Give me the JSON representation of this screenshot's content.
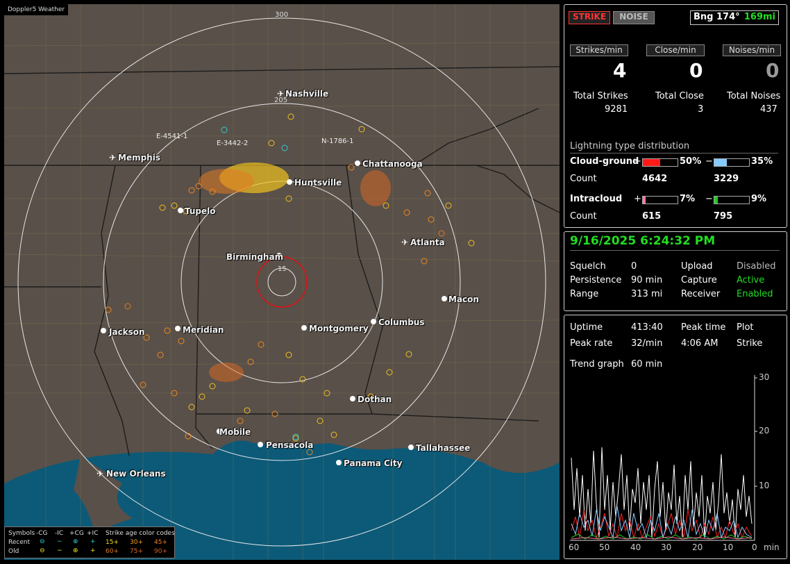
{
  "app_title": "Doppler5 Weather",
  "map": {
    "ring_labels": [
      "300",
      "205",
      "15"
    ],
    "cities": [
      {
        "name": "Nashville",
        "type": "airport"
      },
      {
        "name": "Memphis",
        "type": "airport"
      },
      {
        "name": "Chattanooga",
        "type": "dot"
      },
      {
        "name": "Huntsville",
        "type": "dot"
      },
      {
        "name": "Tupelo",
        "type": "dot"
      },
      {
        "name": "Atlanta",
        "type": "airport"
      },
      {
        "name": "Birmingham",
        "type": "dot"
      },
      {
        "name": "Macon",
        "type": "dot"
      },
      {
        "name": "Jackson",
        "type": "dot"
      },
      {
        "name": "Meridian",
        "type": "dot"
      },
      {
        "name": "Montgomery",
        "type": "dot"
      },
      {
        "name": "Columbus",
        "type": "dot"
      },
      {
        "name": "Dothan",
        "type": "dot"
      },
      {
        "name": "Mobile",
        "type": "dot"
      },
      {
        "name": "Pensacola",
        "type": "dot"
      },
      {
        "name": "Tallahassee",
        "type": "dot"
      },
      {
        "name": "Panama City",
        "type": "dot"
      },
      {
        "name": "New Orleans",
        "type": "airport"
      }
    ],
    "storm_tags": [
      "E-4541-1",
      "E-3442-2",
      "N-1786-1"
    ]
  },
  "legend": {
    "symbols_label": "Symbols",
    "headers": [
      "-CG",
      "-IC",
      "+CG",
      "+IC"
    ],
    "rows": [
      "Recent",
      "Old"
    ],
    "age_label": "Strike age color codes",
    "recent_ages": [
      "15+",
      "30+",
      "45+"
    ],
    "old_ages": [
      "60+",
      "75+",
      "90+"
    ]
  },
  "top": {
    "strike_button": "STRIKE",
    "noise_button": "NOISE",
    "bearing": "Bng 174°",
    "distance": "169mi",
    "rate_buttons": [
      "Strikes/min",
      "Close/min",
      "Noises/min"
    ],
    "rates": [
      "4",
      "0",
      "0"
    ],
    "total_labels": [
      "Total Strikes",
      "Total Close",
      "Total Noises"
    ],
    "totals": [
      "9281",
      "3",
      "437"
    ],
    "dist_title": "Lightning type distribution",
    "cg_label": "Cloud-ground",
    "ic_label": "Intracloud",
    "count_label": "Count",
    "cg_pos_pct": "50%",
    "cg_neg_pct": "35%",
    "cg_pos_count": "4642",
    "cg_neg_count": "3229",
    "ic_pos_pct": "7%",
    "ic_neg_pct": "9%",
    "ic_pos_count": "615",
    "ic_neg_count": "795",
    "plus": "+",
    "minus": "−"
  },
  "status": {
    "datetime": "9/16/2025 6:24:32 PM",
    "rows": [
      [
        "Squelch",
        "0",
        "Upload",
        "Disabled"
      ],
      [
        "Persistence",
        "90 min",
        "Capture",
        "Active"
      ],
      [
        "Range",
        "313 mi",
        "Receiver",
        "Enabled"
      ]
    ]
  },
  "stats": {
    "uptime_label": "Uptime",
    "uptime": "413:40",
    "peak_time_label": "Peak time",
    "peak_time": "4:06 AM",
    "plot_label": "Plot",
    "plot_value": "Strike",
    "peak_rate_label": "Peak rate",
    "peak_rate": "32/min",
    "trend_label": "Trend graph",
    "trend_value": "60 min",
    "x_ticks": [
      "60",
      "50",
      "40",
      "30",
      "20",
      "10",
      "0"
    ],
    "x_unit": "min",
    "y_ticks": [
      "30",
      "20",
      "10"
    ]
  },
  "colors": {
    "active": "#22dd22",
    "strike": "#ff3333",
    "cg_pos": "#ff1a1a",
    "cg_neg": "#88ccff",
    "ic_pos": "#ff77aa",
    "ic_neg": "#22cc22",
    "map_land": "#595049",
    "map_water": "#0c5a78"
  }
}
